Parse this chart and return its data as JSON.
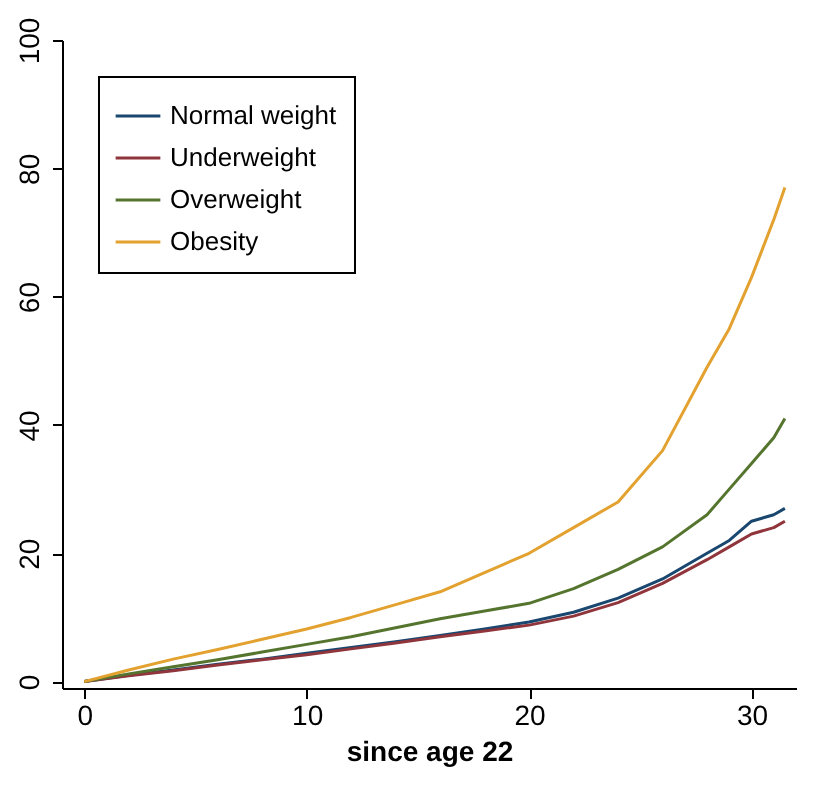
{
  "chart_data": {
    "type": "line",
    "xlabel": "since age 22",
    "x": [
      0,
      2,
      4,
      6,
      8,
      10,
      12,
      14,
      16,
      18,
      20,
      22,
      24,
      26,
      28,
      29,
      30,
      31,
      31.5
    ],
    "series": [
      {
        "name": "Normal weight",
        "color": "#1a476f",
        "values": [
          0,
          1,
          1.8,
          2.7,
          3.5,
          4.4,
          5.3,
          6.2,
          7.2,
          8.2,
          9.3,
          10.8,
          13,
          16,
          20,
          22,
          25,
          26,
          27
        ]
      },
      {
        "name": "Underweight",
        "color": "#90353b",
        "values": [
          0,
          0.9,
          1.7,
          2.6,
          3.4,
          4.2,
          5.1,
          6,
          7,
          7.9,
          8.8,
          10.2,
          12.3,
          15.3,
          19,
          21,
          23,
          24,
          25
        ]
      },
      {
        "name": "Overweight",
        "color": "#55752f",
        "values": [
          0,
          1.2,
          2.3,
          3.4,
          4.6,
          5.8,
          7,
          8.4,
          9.8,
          11,
          12.2,
          14.5,
          17.5,
          21,
          26,
          30,
          34,
          38,
          41
        ]
      },
      {
        "name": "Obesity",
        "color": "#e3a12f",
        "values": [
          0,
          1.8,
          3.5,
          5,
          6.6,
          8.2,
          10,
          12,
          14,
          17,
          20,
          24,
          28,
          36,
          49,
          55,
          63,
          72,
          77
        ]
      }
    ],
    "xlim": [
      -1,
      32
    ],
    "xticks": [
      0,
      10,
      20,
      30
    ],
    "ylim": [
      -1,
      100
    ],
    "yticks": [
      0,
      20,
      40,
      60,
      80,
      100
    ],
    "grid": false,
    "legend": "top left",
    "marker": "none",
    "line_style": "solid"
  }
}
